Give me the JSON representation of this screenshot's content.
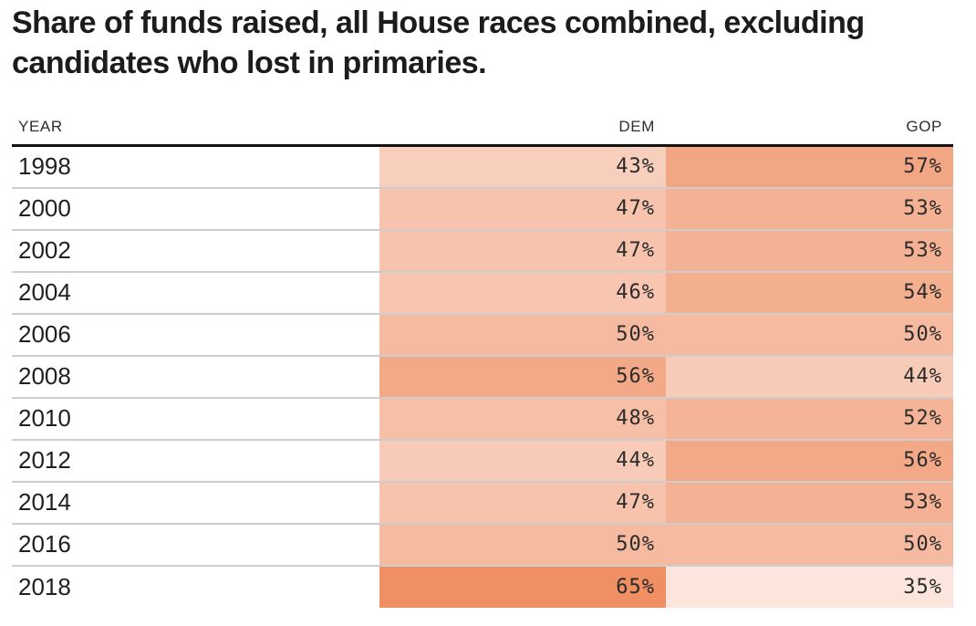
{
  "header": {
    "title_lines": [
      "Share of funds raised, all House races combined, excluding",
      "candidates who lost in primaries."
    ]
  },
  "chart_data": {
    "type": "heatmap",
    "title": "Share of funds raised, all House races combined, excluding candidates who lost in primaries.",
    "columns": [
      "YEAR",
      "DEM",
      "GOP"
    ],
    "value_suffix": "%",
    "rows": [
      {
        "year": "1998",
        "dem": 43,
        "gop": 57
      },
      {
        "year": "2000",
        "dem": 47,
        "gop": 53
      },
      {
        "year": "2002",
        "dem": 47,
        "gop": 53
      },
      {
        "year": "2004",
        "dem": 46,
        "gop": 54
      },
      {
        "year": "2006",
        "dem": 50,
        "gop": 50
      },
      {
        "year": "2008",
        "dem": 56,
        "gop": 44
      },
      {
        "year": "2010",
        "dem": 48,
        "gop": 52
      },
      {
        "year": "2012",
        "dem": 44,
        "gop": 56
      },
      {
        "year": "2014",
        "dem": 47,
        "gop": 53
      },
      {
        "year": "2016",
        "dem": 50,
        "gop": 50
      },
      {
        "year": "2018",
        "dem": 65,
        "gop": 35
      }
    ],
    "color_scale": {
      "min_value": 35,
      "max_value": 65,
      "min_color": "#fbe5dc",
      "max_color": "#f08f63"
    },
    "layout": {
      "legend": "none",
      "grid": "row-separators"
    }
  },
  "colors": {
    "background": "#ffffff",
    "title_text": "#1c1c1c",
    "header_text": "#2e2e2e",
    "year_text": "#1f1f1f",
    "value_text": "#2b2b2b",
    "header_rule": "#121212",
    "row_separator": "#cdcdcd"
  }
}
